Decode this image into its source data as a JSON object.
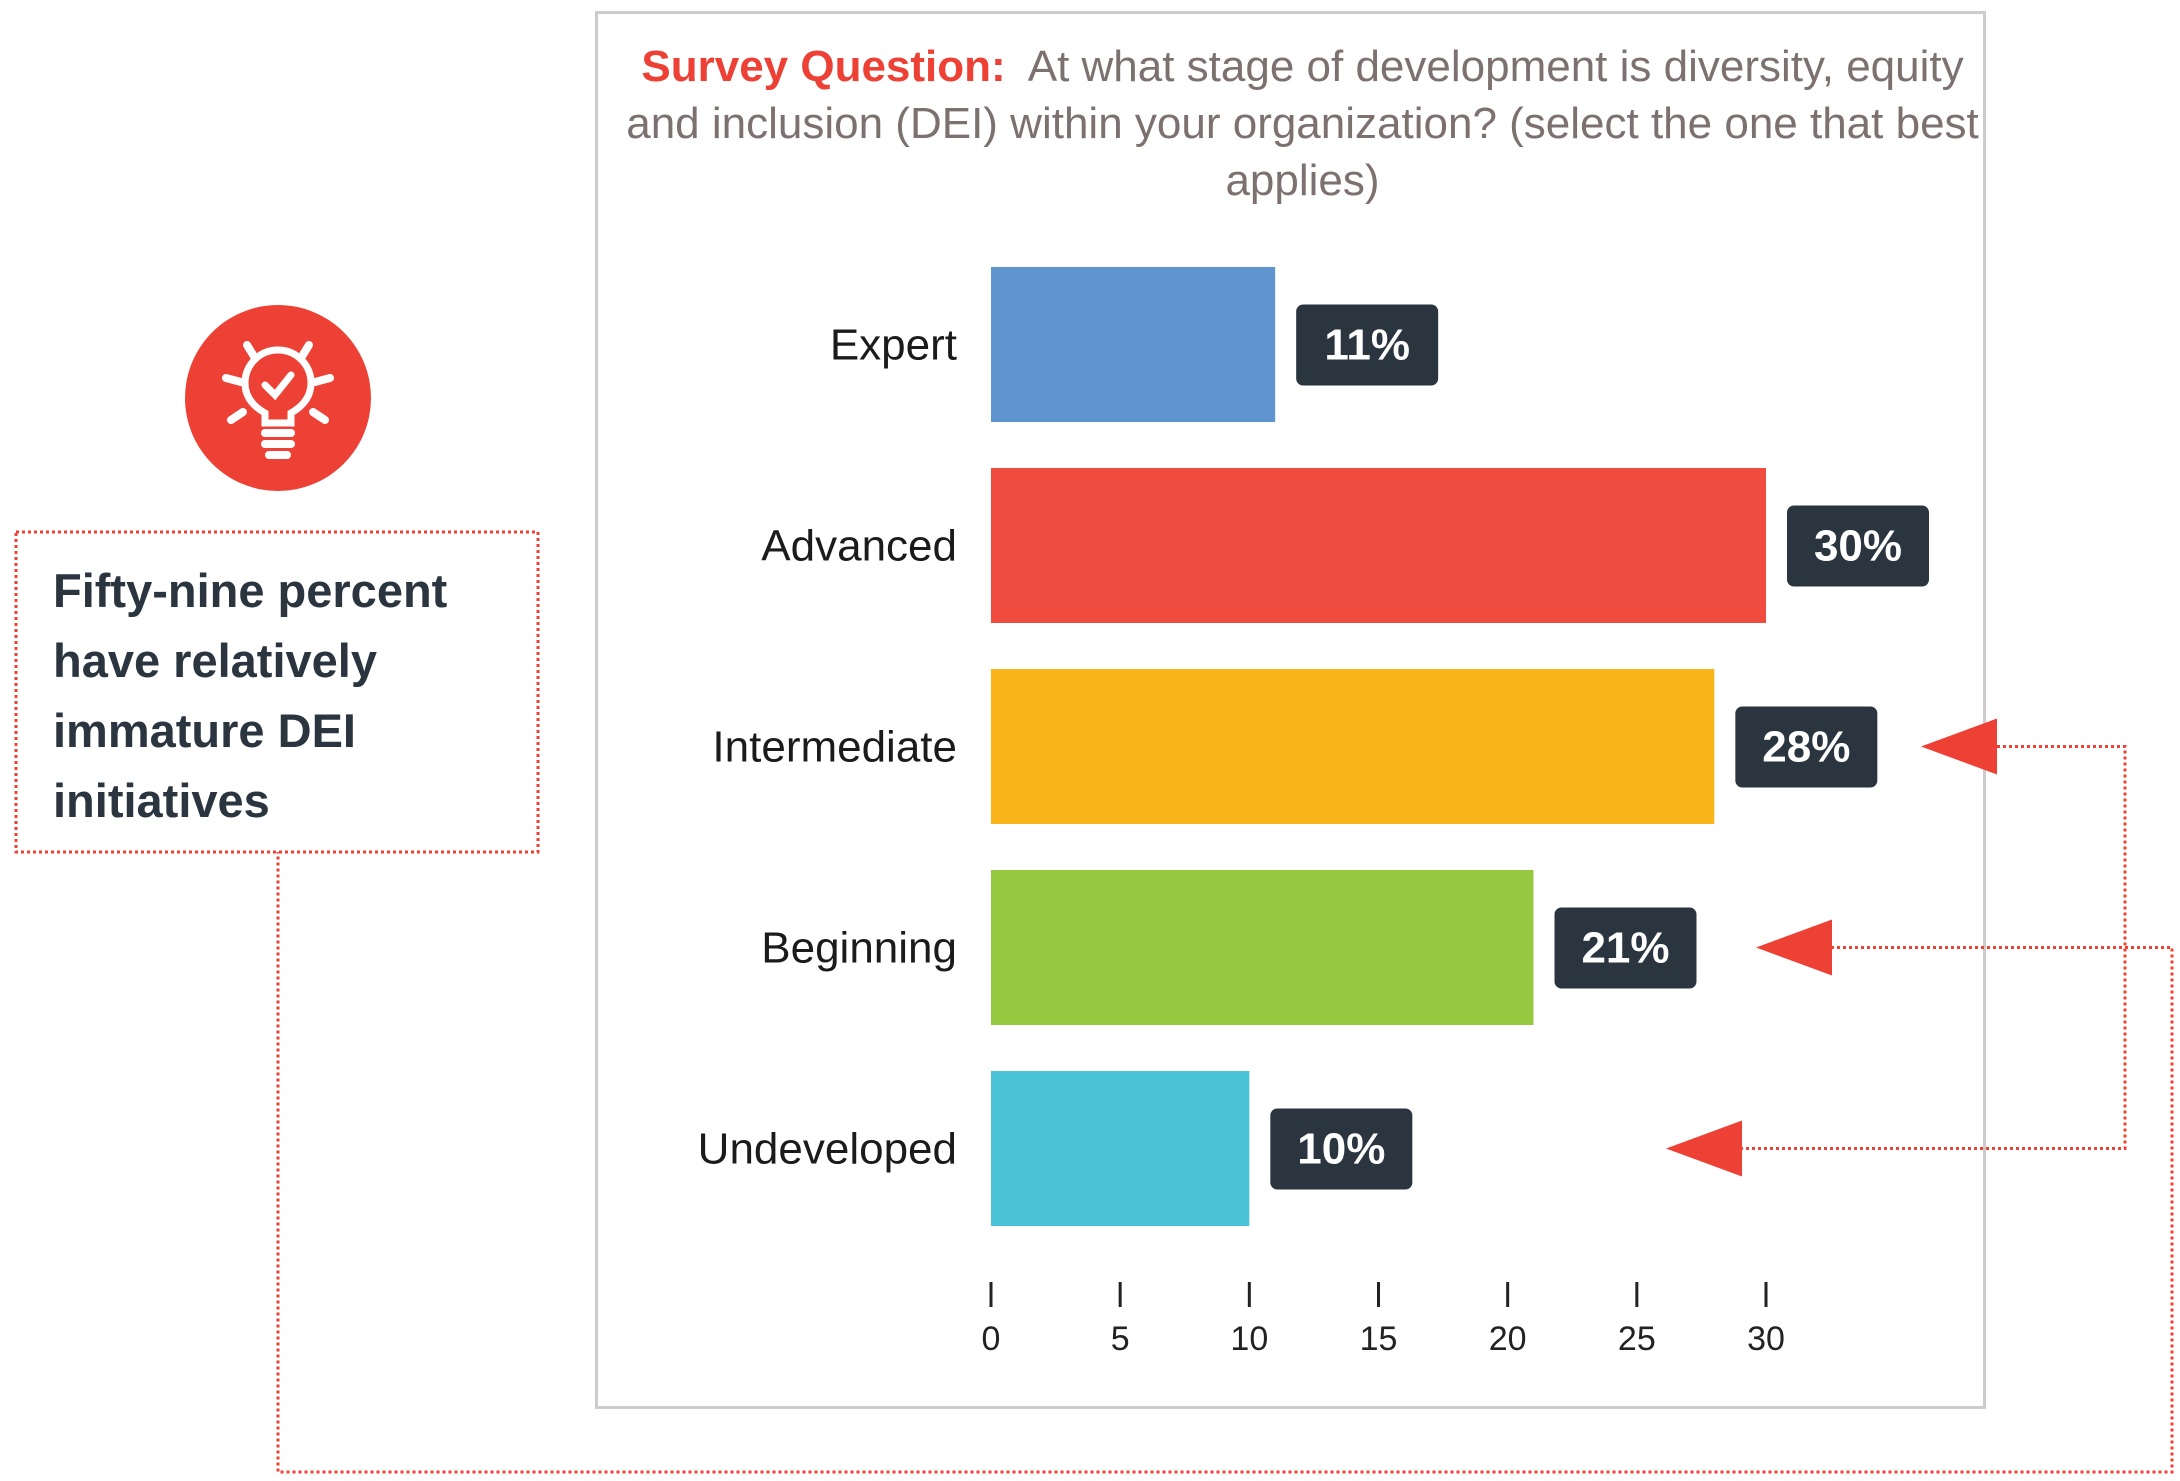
{
  "title": {
    "prefix": "Survey Question:",
    "text": "At what stage of development is diversity, equity and inclusion (DEI) within your organization? (select the one that best applies)"
  },
  "callout": {
    "text": "Fifty-nine percent have relatively immature DEI initiatives",
    "icon": "lightbulb-check-icon"
  },
  "colors": {
    "accent": "#ee4136",
    "label_bg": "#2b3540"
  },
  "chart_data": {
    "type": "bar",
    "orientation": "horizontal",
    "categories": [
      "Expert",
      "Advanced",
      "Intermediate",
      "Beginning",
      "Undeveloped"
    ],
    "values": [
      11,
      30,
      28,
      21,
      10
    ],
    "data_labels": [
      "11%",
      "30%",
      "28%",
      "21%",
      "10%"
    ],
    "colors": [
      "#5e95cf",
      "#ef4b3e",
      "#f9b419",
      "#96c93f",
      "#4bc3d6"
    ],
    "xticks": [
      0,
      5,
      10,
      15,
      20,
      25,
      30
    ],
    "xlim": [
      0,
      30
    ],
    "highlighted": [
      "Intermediate",
      "Beginning",
      "Undeveloped"
    ]
  }
}
